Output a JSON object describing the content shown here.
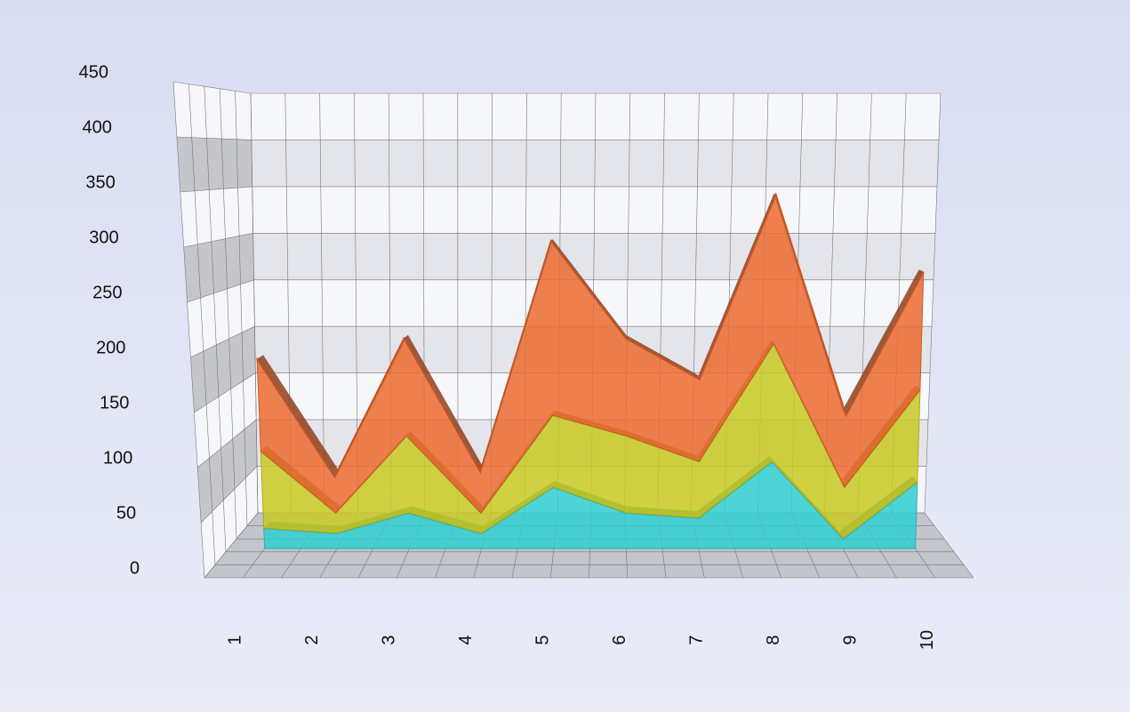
{
  "chart_data": {
    "type": "area",
    "stacked": true,
    "three_d": true,
    "categories": [
      "1",
      "2",
      "3",
      "4",
      "5",
      "6",
      "7",
      "8",
      "9",
      "10"
    ],
    "series": [
      {
        "color": "#2fcfcf",
        "values": [
          20,
          15,
          35,
          15,
          60,
          35,
          30,
          85,
          10,
          65
        ]
      },
      {
        "color": "#c9c922",
        "values": [
          75,
          20,
          75,
          20,
          70,
          75,
          55,
          115,
          50,
          90
        ]
      },
      {
        "color": "#ec6a30",
        "values": [
          90,
          35,
          95,
          40,
          170,
          95,
          80,
          145,
          70,
          115
        ]
      }
    ],
    "ylim": [
      0,
      450
    ],
    "yticks": [
      0,
      50,
      100,
      150,
      200,
      250,
      300,
      350,
      400,
      450
    ],
    "grid": true
  }
}
